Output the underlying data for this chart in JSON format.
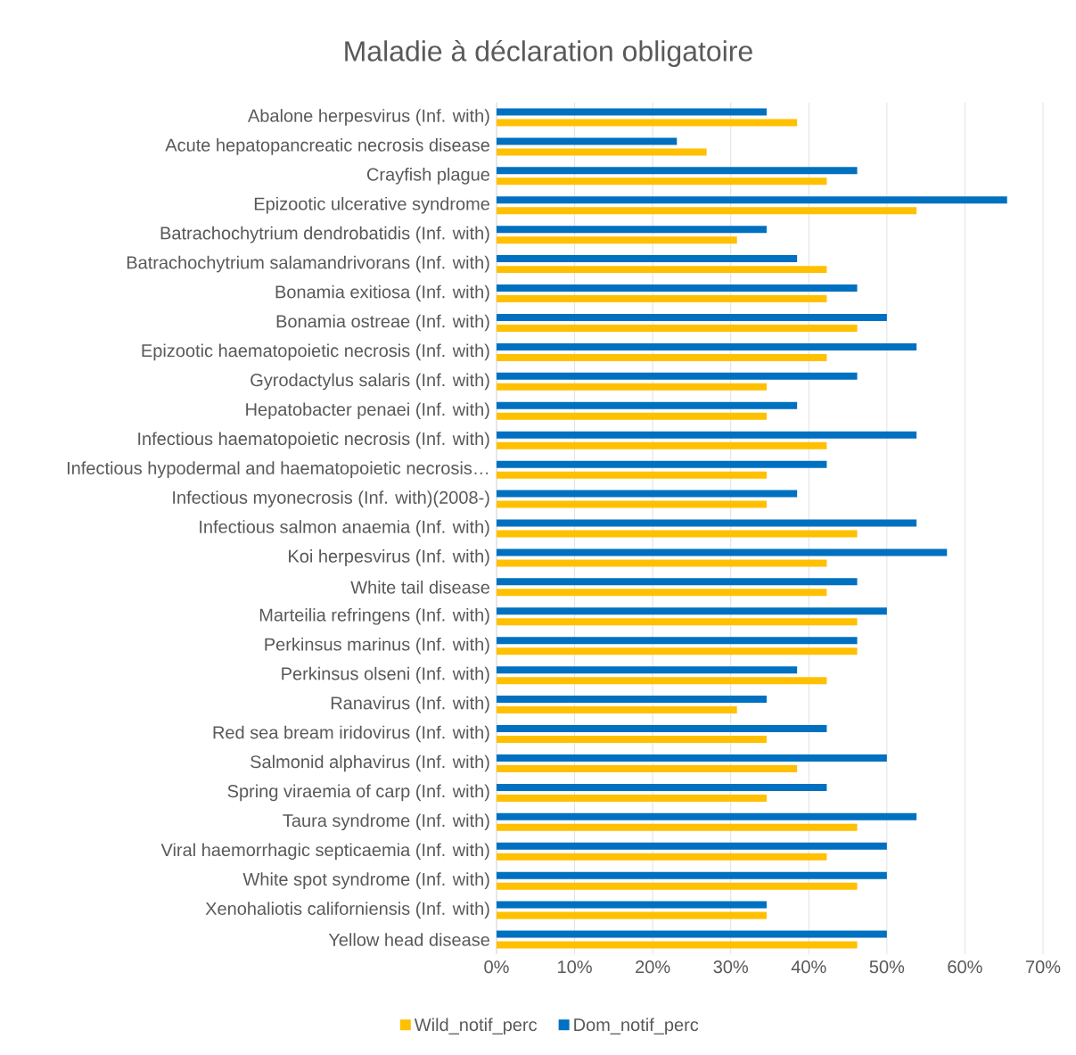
{
  "chart_data": {
    "type": "bar",
    "orientation": "horizontal",
    "title": "Maladie à déclaration obligatoire",
    "categories": [
      "Abalone herpesvirus (Inf. with)",
      "Acute hepatopancreatic necrosis disease",
      "Crayfish plague",
      "Epizootic ulcerative syndrome",
      "Batrachochytrium dendrobatidis (Inf. with)",
      "Batrachochytrium salamandrivorans (Inf. with)",
      "Bonamia exitiosa (Inf. with)",
      "Bonamia ostreae (Inf. with)",
      "Epizootic haematopoietic necrosis  (Inf. with)",
      "Gyrodactylus salaris (Inf. with)",
      "Hepatobacter penaei (Inf. with)",
      "Infectious haematopoietic necrosis  (Inf. with)",
      "Infectious hypodermal and haematopoietic necrosis…",
      "Infectious myonecrosis  (Inf. with)(2008-)",
      "Infectious salmon anaemia  (Inf. with)",
      "Koi herpesvirus (Inf. with)",
      "White tail disease",
      "Marteilia refringens (Inf. with)",
      "Perkinsus marinus (Inf. with)",
      "Perkinsus olseni (Inf. with)",
      "Ranavirus (Inf. with)",
      "Red sea bream iridovirus (Inf. with)",
      "Salmonid alphavirus (Inf. with)",
      "Spring viraemia of carp (Inf. with)",
      "Taura syndrome  (Inf. with)",
      "Viral haemorrhagic septicaemia  (Inf. with)",
      "White spot syndrome  (Inf. with)",
      "Xenohaliotis californiensis (Inf. with)",
      "Yellow head disease"
    ],
    "series": [
      {
        "name": "Wild_notif_perc",
        "color": "#ffc000",
        "values": [
          38.5,
          26.9,
          42.3,
          53.8,
          30.8,
          42.3,
          42.3,
          46.2,
          42.3,
          34.6,
          34.6,
          42.3,
          34.6,
          34.6,
          46.2,
          42.3,
          42.3,
          46.2,
          46.2,
          42.3,
          30.8,
          34.6,
          38.5,
          34.6,
          46.2,
          42.3,
          46.2,
          34.6,
          46.2
        ]
      },
      {
        "name": "Dom_notif_perc",
        "color": "#0070c0",
        "values": [
          34.6,
          23.1,
          46.2,
          65.4,
          34.6,
          38.5,
          46.2,
          50.0,
          53.8,
          46.2,
          38.5,
          53.8,
          42.3,
          38.5,
          53.8,
          57.7,
          46.2,
          50.0,
          46.2,
          38.5,
          34.6,
          42.3,
          50.0,
          42.3,
          53.8,
          50.0,
          50.0,
          34.6,
          50.0
        ]
      }
    ],
    "xlim": [
      0,
      70
    ],
    "xticks": [
      {
        "value": 0,
        "label": "0%"
      },
      {
        "value": 10,
        "label": "10%"
      },
      {
        "value": 20,
        "label": "20%"
      },
      {
        "value": 30,
        "label": "30%"
      },
      {
        "value": 40,
        "label": "40%"
      },
      {
        "value": 50,
        "label": "50%"
      },
      {
        "value": 60,
        "label": "60%"
      },
      {
        "value": 70,
        "label": "70%"
      }
    ],
    "grid": "x",
    "legend": "bottom"
  }
}
